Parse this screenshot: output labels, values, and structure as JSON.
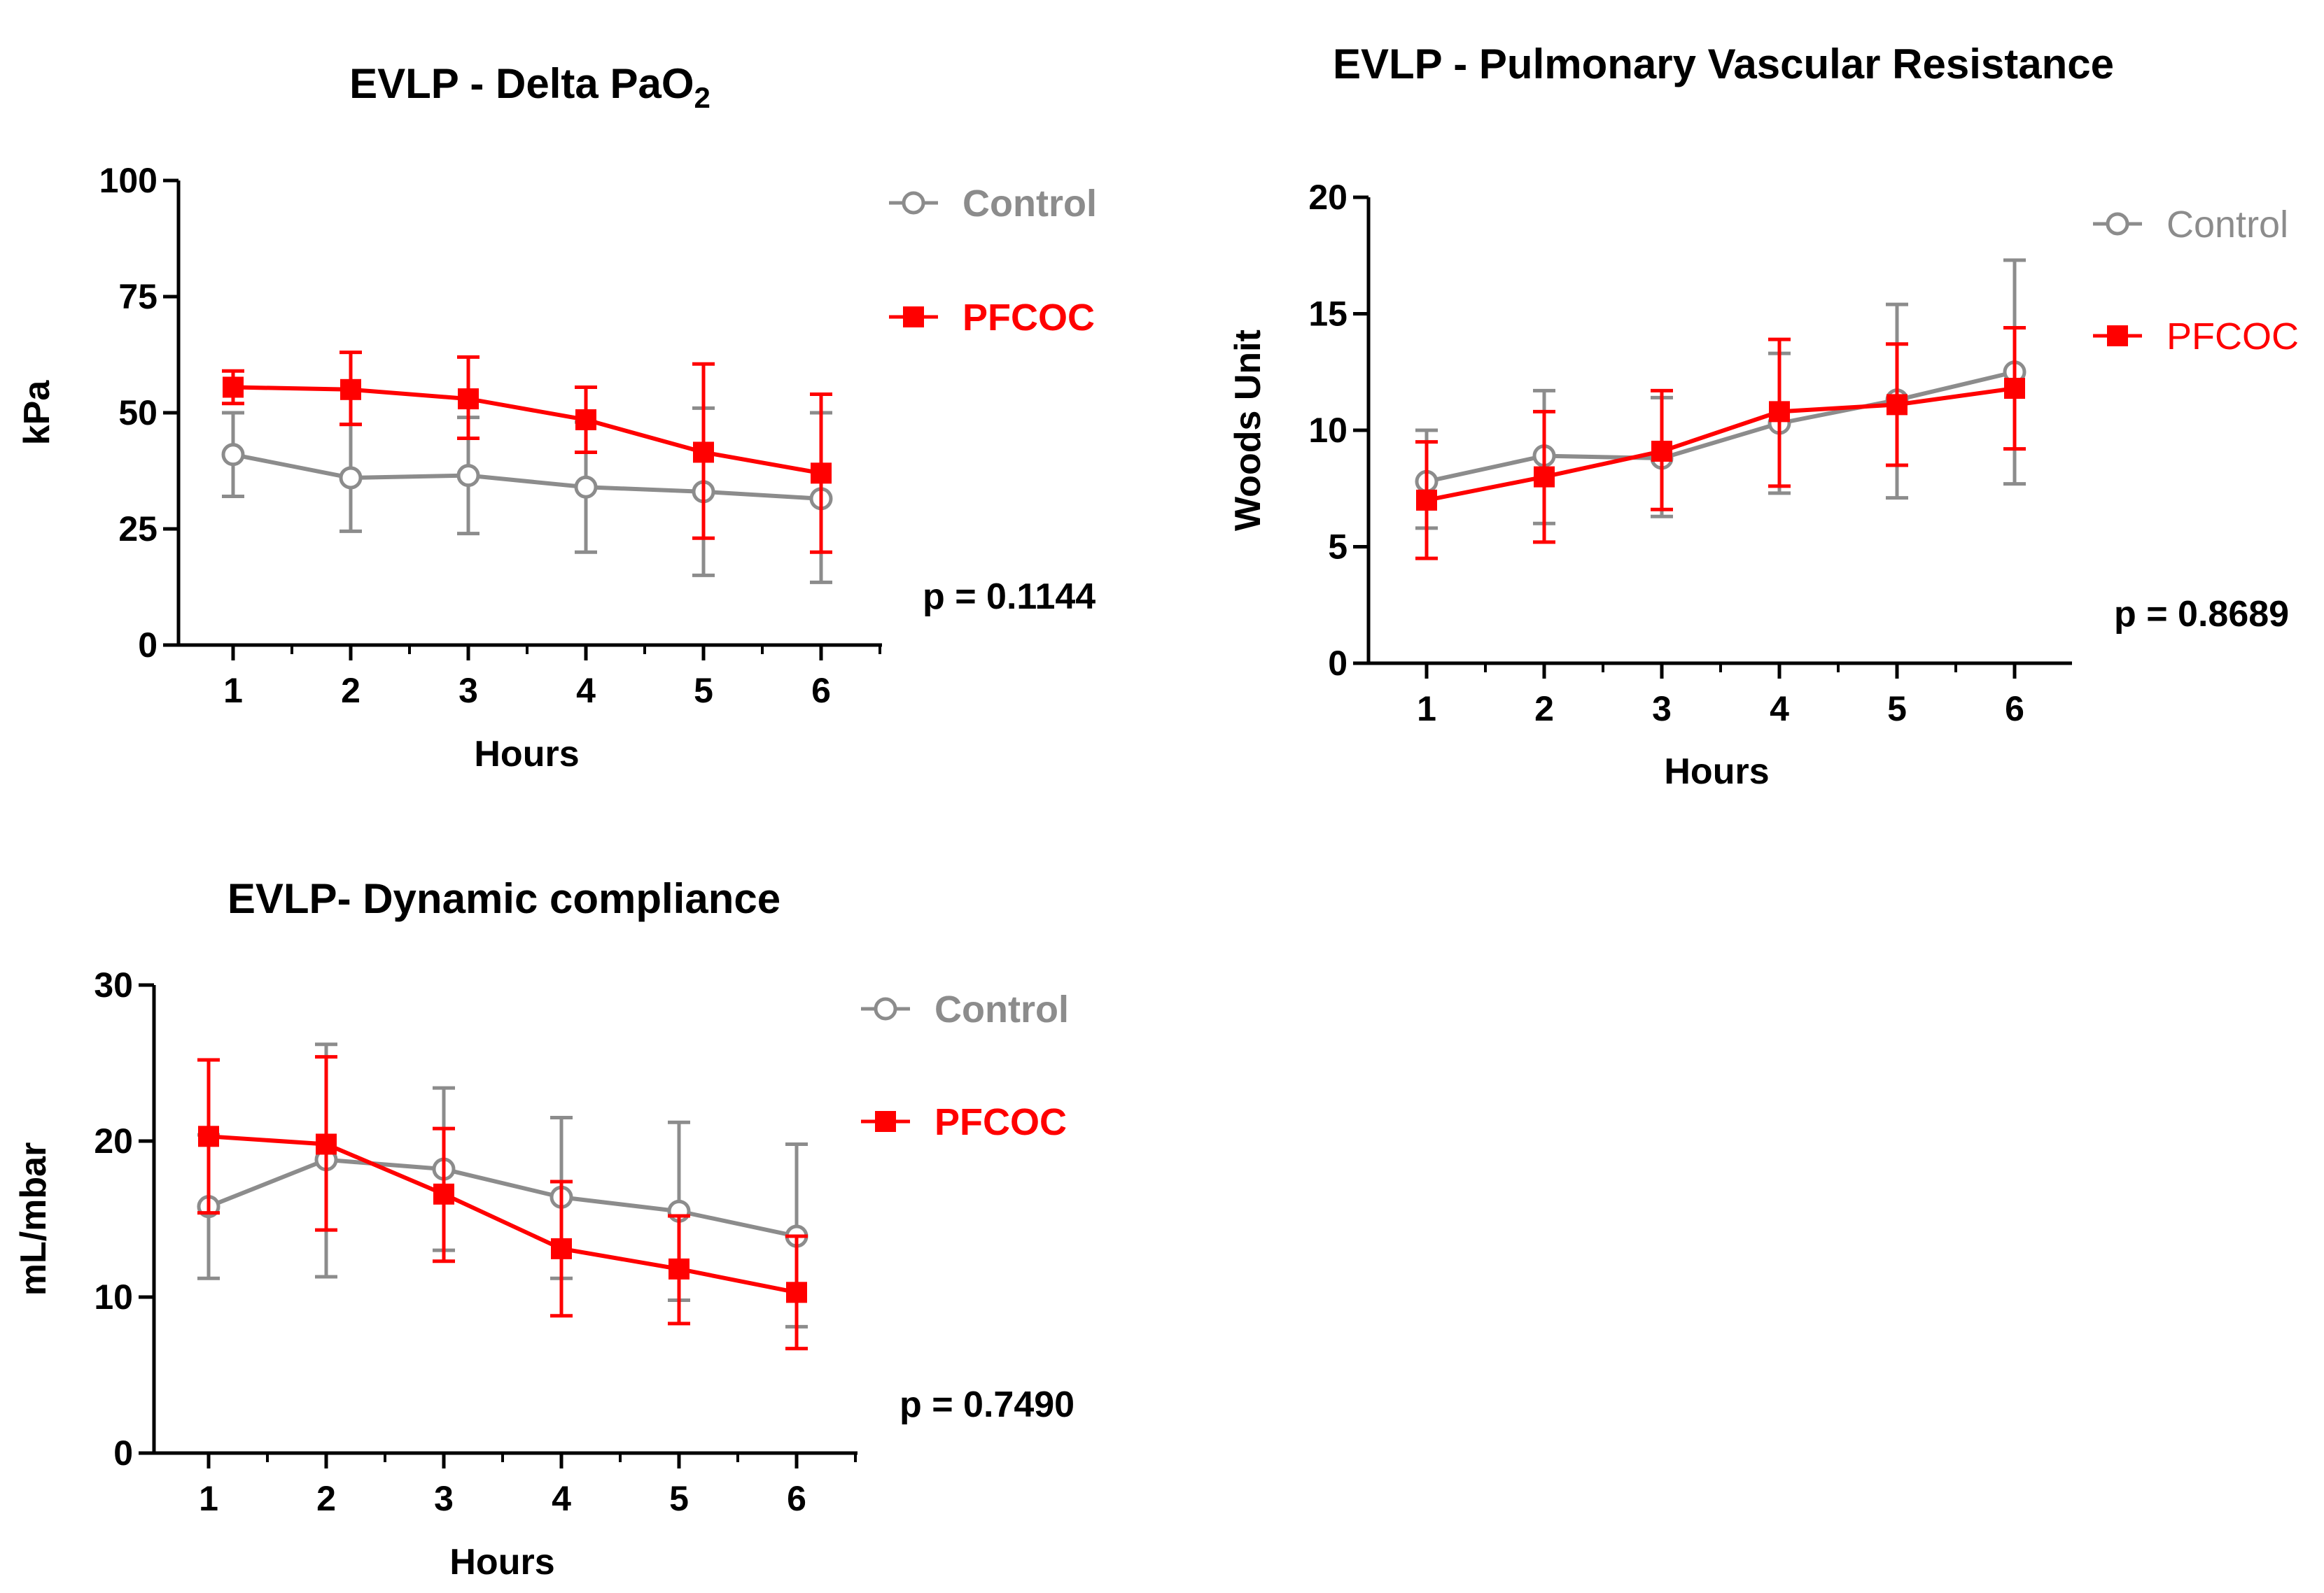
{
  "colors": {
    "control": "#8c8c8c",
    "pfcoc": "#ff0000",
    "axis": "#000000"
  },
  "chart_data": [
    {
      "type": "line",
      "title": "EVLP - Delta PaO",
      "title_subscript": "2",
      "xlabel": "Hours",
      "ylabel": "kPa",
      "x": [
        1,
        2,
        3,
        4,
        5,
        6
      ],
      "xticks": [
        "1",
        "2",
        "3",
        "4",
        "5",
        "6"
      ],
      "yticks": [
        "0",
        "25",
        "50",
        "75",
        "100"
      ],
      "ylim": [
        0,
        100
      ],
      "p_value": "p = 0.1144",
      "legend_bold": true,
      "series": [
        {
          "name": "Control",
          "marker": "open-circle",
          "values": [
            41,
            36,
            36.5,
            34,
            33,
            31.5
          ],
          "error_low": [
            32,
            24.5,
            24,
            20,
            15,
            13.5
          ],
          "error_high": [
            50,
            47.5,
            49,
            48,
            51,
            50
          ]
        },
        {
          "name": "PFCOC",
          "marker": "filled-square",
          "values": [
            55.5,
            55,
            53,
            48.5,
            41.5,
            37
          ],
          "error_low": [
            52,
            47.5,
            44.5,
            41.5,
            23,
            20
          ],
          "error_high": [
            59,
            63,
            62,
            55.5,
            60.5,
            54
          ]
        }
      ]
    },
    {
      "type": "line",
      "title": "EVLP - Pulmonary Vascular Resistance",
      "xlabel": "Hours",
      "ylabel": "Woods Unit",
      "x": [
        1,
        2,
        3,
        4,
        5,
        6
      ],
      "xticks": [
        "1",
        "2",
        "3",
        "4",
        "5",
        "6"
      ],
      "yticks": [
        "0",
        "5",
        "10",
        "15",
        "20"
      ],
      "ylim": [
        0,
        20
      ],
      "p_value": "p = 0.8689",
      "legend_bold": false,
      "series": [
        {
          "name": "Control",
          "marker": "open-circle",
          "values": [
            7.8,
            8.9,
            8.8,
            10.3,
            11.3,
            12.5
          ],
          "error_low": [
            5.8,
            6.0,
            6.3,
            7.3,
            7.1,
            7.7
          ],
          "error_high": [
            10.0,
            11.7,
            11.4,
            13.3,
            15.4,
            17.3
          ]
        },
        {
          "name": "PFCOC",
          "marker": "filled-square",
          "values": [
            7.0,
            8.0,
            9.1,
            10.8,
            11.1,
            11.8
          ],
          "error_low": [
            4.5,
            5.2,
            6.6,
            7.6,
            8.5,
            9.2
          ],
          "error_high": [
            9.5,
            10.8,
            11.7,
            13.9,
            13.7,
            14.4
          ]
        }
      ]
    },
    {
      "type": "line",
      "title": "EVLP- Dynamic compliance",
      "xlabel": "Hours",
      "ylabel": "mL/mbar",
      "x": [
        1,
        2,
        3,
        4,
        5,
        6
      ],
      "xticks": [
        "1",
        "2",
        "3",
        "4",
        "5",
        "6"
      ],
      "yticks": [
        "0",
        "10",
        "20",
        "30"
      ],
      "ylim": [
        0,
        30
      ],
      "p_value": "p = 0.7490",
      "legend_bold": true,
      "series": [
        {
          "name": "Control",
          "marker": "open-circle",
          "values": [
            15.8,
            18.8,
            18.2,
            16.4,
            15.5,
            13.9
          ],
          "error_low": [
            11.2,
            11.3,
            13.0,
            11.2,
            9.8,
            8.1
          ],
          "error_high": [
            20.4,
            26.2,
            23.4,
            21.5,
            21.2,
            19.8
          ]
        },
        {
          "name": "PFCOC",
          "marker": "filled-square",
          "values": [
            20.3,
            19.8,
            16.6,
            13.1,
            11.8,
            10.3
          ],
          "error_low": [
            15.4,
            14.3,
            12.3,
            8.8,
            8.3,
            6.7
          ],
          "error_high": [
            25.2,
            25.4,
            20.8,
            17.4,
            15.2,
            13.9
          ]
        }
      ]
    }
  ]
}
